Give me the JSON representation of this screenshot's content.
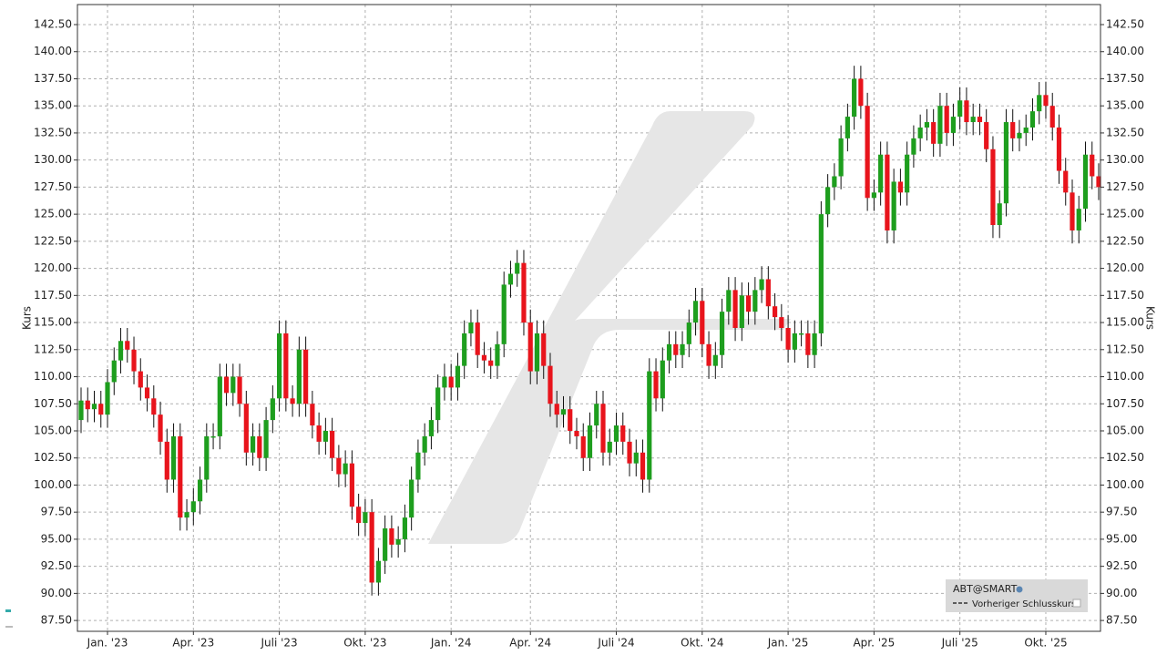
{
  "chart_data": {
    "type": "candlestick",
    "y_label": "Kurs",
    "y2_label": "Kurs",
    "ylim": [
      86.5,
      144.35
    ],
    "yticks": [
      {
        "value": 87.5,
        "label": "87.50"
      },
      {
        "value": 90,
        "label": "90.00"
      },
      {
        "value": 92.5,
        "label": "92.50"
      },
      {
        "value": 95,
        "label": "95.00"
      },
      {
        "value": 97.5,
        "label": "97.50"
      },
      {
        "value": 100,
        "label": "100.00"
      },
      {
        "value": 102.5,
        "label": "102.50"
      },
      {
        "value": 105,
        "label": "105.00"
      },
      {
        "value": 107.5,
        "label": "107.50"
      },
      {
        "value": 110,
        "label": "110.00"
      },
      {
        "value": 112.5,
        "label": "112.50"
      },
      {
        "value": 115,
        "label": "115.00"
      },
      {
        "value": 117.5,
        "label": "117.50"
      },
      {
        "value": 120,
        "label": "120.00"
      },
      {
        "value": 122.5,
        "label": "122.50"
      },
      {
        "value": 125,
        "label": "125.00"
      },
      {
        "value": 127.5,
        "label": "127.50"
      },
      {
        "value": 130,
        "label": "130.00"
      },
      {
        "value": 132.5,
        "label": "132.50"
      },
      {
        "value": 135,
        "label": "135.00"
      },
      {
        "value": 137.5,
        "label": "137.50"
      },
      {
        "value": 140,
        "label": "140.00"
      },
      {
        "value": 142.5,
        "label": "142.50"
      }
    ],
    "grid": true,
    "categories": [
      null,
      null,
      null,
      null,
      "Jan. '23",
      null,
      null,
      null,
      null,
      null,
      null,
      null,
      null,
      null,
      null,
      null,
      null,
      "Apr. '23",
      null,
      null,
      null,
      null,
      null,
      null,
      null,
      null,
      null,
      null,
      null,
      null,
      "Juli '23",
      null,
      null,
      null,
      null,
      null,
      null,
      null,
      null,
      null,
      null,
      null,
      null,
      "Okt. '23",
      null,
      null,
      null,
      null,
      null,
      null,
      null,
      null,
      null,
      null,
      null,
      null,
      "Jan. '24",
      null,
      null,
      null,
      null,
      null,
      null,
      null,
      null,
      null,
      null,
      null,
      "Apr. '24",
      null,
      null,
      null,
      null,
      null,
      null,
      null,
      null,
      null,
      null,
      null,
      null,
      "Juli '24",
      null,
      null,
      null,
      null,
      null,
      null,
      null,
      null,
      null,
      null,
      null,
      null,
      "Okt. '24",
      null,
      null,
      null,
      null,
      null,
      null,
      null,
      null,
      null,
      null,
      null,
      null,
      "Jan. '25",
      null,
      null,
      null,
      null,
      null,
      null,
      null,
      null,
      null,
      null,
      null,
      null,
      "Apr. '25",
      null,
      null,
      null,
      null,
      null,
      null,
      null,
      null,
      null,
      null,
      null,
      null,
      "Juli '25",
      null,
      null,
      null,
      null,
      null,
      null,
      null,
      null,
      null,
      null,
      null,
      null,
      "Okt. '25",
      null,
      null,
      null,
      null,
      null,
      null,
      null,
      null
    ],
    "series": [
      {
        "name": "ABT@SMART",
        "up_color": "#1e9e1e",
        "down_color": "#e8141c",
        "open": [
          106.0,
          107.8,
          107.0,
          107.5,
          106.5,
          109.5,
          111.5,
          113.3,
          112.5,
          110.5,
          109.0,
          108.0,
          106.5,
          104.0,
          100.5,
          104.5,
          97.0,
          97.5,
          98.5,
          100.5,
          104.5,
          104.5,
          110.0,
          108.5,
          110.0,
          107.5,
          103.0,
          104.5,
          102.5,
          106.0,
          108.0,
          114.0,
          108.0,
          107.5,
          112.5,
          107.5,
          105.5,
          104.0,
          105.0,
          102.5,
          101.0,
          102.0,
          98.0,
          96.5,
          97.5,
          91.0,
          93.0,
          96.0,
          94.5,
          95.0,
          97.0,
          100.5,
          103.0,
          104.5,
          106.0,
          109.0,
          110.0,
          109.0,
          111.0,
          114.0,
          115.0,
          112.0,
          111.5,
          111.0,
          113.0,
          118.5,
          119.5,
          120.5,
          115.0,
          110.5,
          114.0,
          111.0,
          107.5,
          106.5,
          107.0,
          105.0,
          104.5,
          102.5,
          105.5,
          107.5,
          103.0,
          104.0,
          105.5,
          104.0,
          102.0,
          103.0,
          100.5,
          110.5,
          108.0,
          111.5,
          113.0,
          112.0,
          113.0,
          115.0,
          117.0,
          113.0,
          111.0,
          112.0,
          116.0,
          118.0,
          114.5,
          117.5,
          116.0,
          118.0,
          119.0,
          116.5,
          115.5,
          114.5,
          112.5,
          114.0,
          114.0,
          112.0,
          114.0,
          125.0,
          127.5,
          128.5,
          132.0,
          134.0,
          137.5,
          135.0,
          126.5,
          127.0,
          130.5,
          123.5,
          128.0,
          127.0,
          130.5,
          132.0,
          133.0,
          133.5,
          131.5,
          135.0,
          132.5,
          134.0,
          135.5,
          133.5,
          134.0,
          133.5,
          131.0,
          124.0,
          126.0,
          133.5,
          132.0,
          132.5,
          133.0,
          134.5,
          136.0,
          135.0,
          133.0,
          129.0,
          127.0,
          123.5,
          125.5,
          130.5,
          128.5
        ],
        "high": [
          109.0,
          109.0,
          108.7,
          108.7,
          110.7,
          112.7,
          114.5,
          114.5,
          113.7,
          111.7,
          110.2,
          109.2,
          107.7,
          105.2,
          105.7,
          105.7,
          98.7,
          99.7,
          101.7,
          105.7,
          105.7,
          111.2,
          111.2,
          111.2,
          111.2,
          108.7,
          105.7,
          105.7,
          107.2,
          109.2,
          115.2,
          115.2,
          109.2,
          113.7,
          113.7,
          108.7,
          106.7,
          106.2,
          106.2,
          103.7,
          103.2,
          103.2,
          99.2,
          98.7,
          98.7,
          94.2,
          97.2,
          97.2,
          96.2,
          98.2,
          101.7,
          104.2,
          105.7,
          107.2,
          110.2,
          111.2,
          111.2,
          112.2,
          115.2,
          116.2,
          116.2,
          113.2,
          112.7,
          114.2,
          119.7,
          120.7,
          121.7,
          121.7,
          116.2,
          115.2,
          115.2,
          112.2,
          108.7,
          108.2,
          108.2,
          106.2,
          105.7,
          106.7,
          108.7,
          108.7,
          105.2,
          106.7,
          106.7,
          105.2,
          104.2,
          104.2,
          111.7,
          111.7,
          112.7,
          114.2,
          114.2,
          114.2,
          116.2,
          118.2,
          118.2,
          114.2,
          113.2,
          117.2,
          119.2,
          119.2,
          118.7,
          118.7,
          119.2,
          120.2,
          120.2,
          117.7,
          116.7,
          115.7,
          115.2,
          115.2,
          115.2,
          115.2,
          126.2,
          128.7,
          129.7,
          133.2,
          135.2,
          138.7,
          138.7,
          136.2,
          128.2,
          131.7,
          131.7,
          129.2,
          129.2,
          131.7,
          133.2,
          134.2,
          134.7,
          134.7,
          136.2,
          136.2,
          135.2,
          136.7,
          136.7,
          135.2,
          135.2,
          134.7,
          132.2,
          127.2,
          134.7,
          134.7,
          133.7,
          134.2,
          135.7,
          137.2,
          137.2,
          136.2,
          134.2,
          130.2,
          128.2,
          126.7,
          131.7,
          131.7,
          129.7
        ],
        "low": [
          104.8,
          105.8,
          105.8,
          105.3,
          105.3,
          108.3,
          110.3,
          111.3,
          109.3,
          107.8,
          106.8,
          105.3,
          102.8,
          99.3,
          99.3,
          95.8,
          95.8,
          96.3,
          97.3,
          99.3,
          103.3,
          103.3,
          107.3,
          107.3,
          106.3,
          101.8,
          101.8,
          101.3,
          101.3,
          104.8,
          106.8,
          106.8,
          106.3,
          106.3,
          106.3,
          104.3,
          102.8,
          102.8,
          101.3,
          99.8,
          99.8,
          96.8,
          95.3,
          95.3,
          89.8,
          89.8,
          91.8,
          93.3,
          93.3,
          93.8,
          95.8,
          99.3,
          101.8,
          103.3,
          104.8,
          107.8,
          107.8,
          107.8,
          109.8,
          112.8,
          110.8,
          110.3,
          109.8,
          109.8,
          111.8,
          117.3,
          118.3,
          113.8,
          109.3,
          109.3,
          109.8,
          106.3,
          105.3,
          105.3,
          103.8,
          103.3,
          101.3,
          101.3,
          104.3,
          101.8,
          101.8,
          102.8,
          102.8,
          100.8,
          100.8,
          99.3,
          99.3,
          106.8,
          106.8,
          110.3,
          110.8,
          110.8,
          111.8,
          113.8,
          111.8,
          109.8,
          109.8,
          110.8,
          114.8,
          113.3,
          113.3,
          114.8,
          114.8,
          116.8,
          115.3,
          114.3,
          113.3,
          111.3,
          111.3,
          112.8,
          110.8,
          110.8,
          112.8,
          123.8,
          126.3,
          127.3,
          130.8,
          132.8,
          133.8,
          125.3,
          125.3,
          125.8,
          122.3,
          122.3,
          125.8,
          125.8,
          129.3,
          130.8,
          131.8,
          130.3,
          130.3,
          131.3,
          131.3,
          132.8,
          132.3,
          132.3,
          132.3,
          129.8,
          122.8,
          122.8,
          124.8,
          130.8,
          130.8,
          131.3,
          131.8,
          133.3,
          133.8,
          131.8,
          127.8,
          125.8,
          122.3,
          122.3,
          124.3,
          127.3,
          126.3
        ],
        "close": [
          107.8,
          107.0,
          107.5,
          106.5,
          109.5,
          111.5,
          113.3,
          112.5,
          110.5,
          109.0,
          108.0,
          106.5,
          104.0,
          100.5,
          104.5,
          97.0,
          97.5,
          98.5,
          100.5,
          104.5,
          104.5,
          110.0,
          108.5,
          110.0,
          107.5,
          103.0,
          104.5,
          102.5,
          106.0,
          108.0,
          114.0,
          108.0,
          107.5,
          112.5,
          107.5,
          105.5,
          104.0,
          105.0,
          102.5,
          101.0,
          102.0,
          98.0,
          96.5,
          97.5,
          91.0,
          93.0,
          96.0,
          94.5,
          95.0,
          97.0,
          100.5,
          103.0,
          104.5,
          106.0,
          109.0,
          110.0,
          109.0,
          111.0,
          114.0,
          115.0,
          112.0,
          111.5,
          111.0,
          113.0,
          118.5,
          119.5,
          120.5,
          115.0,
          110.5,
          114.0,
          111.0,
          107.5,
          106.5,
          107.0,
          105.0,
          104.5,
          102.5,
          105.5,
          107.5,
          103.0,
          104.0,
          105.5,
          104.0,
          102.0,
          103.0,
          100.5,
          110.5,
          108.0,
          111.5,
          113.0,
          112.0,
          113.0,
          115.0,
          117.0,
          113.0,
          111.0,
          112.0,
          116.0,
          118.0,
          114.5,
          117.5,
          116.0,
          118.0,
          119.0,
          116.5,
          115.5,
          114.5,
          112.5,
          114.0,
          114.0,
          112.0,
          114.0,
          125.0,
          127.5,
          128.5,
          132.0,
          134.0,
          137.5,
          135.0,
          126.5,
          127.0,
          130.5,
          123.5,
          128.0,
          127.0,
          130.5,
          132.0,
          133.0,
          133.5,
          131.5,
          135.0,
          132.5,
          134.0,
          135.5,
          133.5,
          134.0,
          133.5,
          131.0,
          124.0,
          126.0,
          133.5,
          132.0,
          132.5,
          133.0,
          134.5,
          136.0,
          135.0,
          133.0,
          129.0,
          127.0,
          123.5,
          125.5,
          130.5,
          128.5,
          127.5
        ]
      }
    ],
    "reference_line_name": "Vorheriger Schlusskurs",
    "legend": "bottom-right"
  }
}
